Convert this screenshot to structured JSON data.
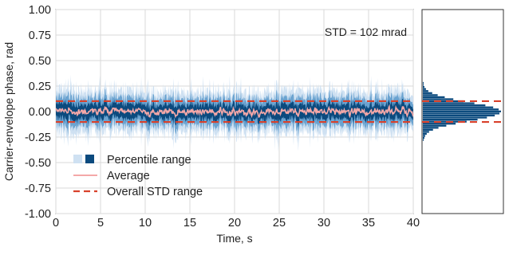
{
  "chart_data": [
    {
      "type": "line",
      "title": "",
      "xlabel": "Time, s",
      "ylabel": "Carrier-envelope phase, rad",
      "xlim": [
        0,
        40
      ],
      "ylim": [
        -1.0,
        1.0
      ],
      "x_ticks": [
        "0",
        "5",
        "10",
        "15",
        "20",
        "25",
        "30",
        "35",
        "40"
      ],
      "y_ticks": [
        "1.00",
        "0.75",
        "0.50",
        "0.25",
        "0.00",
        "-0.25",
        "-0.50",
        "-0.75",
        "-1.00"
      ],
      "grid": true,
      "legend_position": "lower-left",
      "annotation": "STD = 102 mrad",
      "legend": {
        "percentile": "Percentile range",
        "average": "Average",
        "std": "Overall STD range"
      },
      "colors": {
        "percentile_outer": "#cfe1f2",
        "percentile_mid": "#6ba3d0",
        "percentile_inner": "#0b4a7e",
        "average": "#f4a8a8",
        "std": "#d9412b"
      },
      "std_range": [
        -0.102,
        0.102
      ],
      "series": [
        {
          "name": "Average",
          "x_range": [
            0,
            40
          ],
          "typical_range": [
            -0.06,
            0.08
          ],
          "mean": 0.0
        },
        {
          "name": "Percentile range",
          "outer_range": [
            -0.26,
            0.26
          ],
          "inner_range": [
            -0.12,
            0.12
          ]
        },
        {
          "name": "Overall STD range",
          "values": [
            -0.102,
            0.102
          ]
        }
      ]
    },
    {
      "type": "bar",
      "orientation": "horizontal",
      "title": "",
      "description_bins_y_range": [
        -0.3,
        0.3
      ],
      "bin_centers": [
        -0.28,
        -0.26,
        -0.24,
        -0.22,
        -0.2,
        -0.18,
        -0.16,
        -0.14,
        -0.12,
        -0.1,
        -0.08,
        -0.06,
        -0.04,
        -0.02,
        0.0,
        0.02,
        0.04,
        0.06,
        0.08,
        0.1,
        0.12,
        0.14,
        0.16,
        0.18,
        0.2,
        0.22,
        0.24,
        0.26,
        0.28
      ],
      "values": [
        1,
        2,
        3,
        5,
        8,
        13,
        20,
        30,
        42,
        56,
        70,
        82,
        92,
        98,
        100,
        97,
        90,
        80,
        66,
        52,
        39,
        28,
        19,
        12,
        7,
        4,
        2,
        1,
        1
      ]
    }
  ]
}
